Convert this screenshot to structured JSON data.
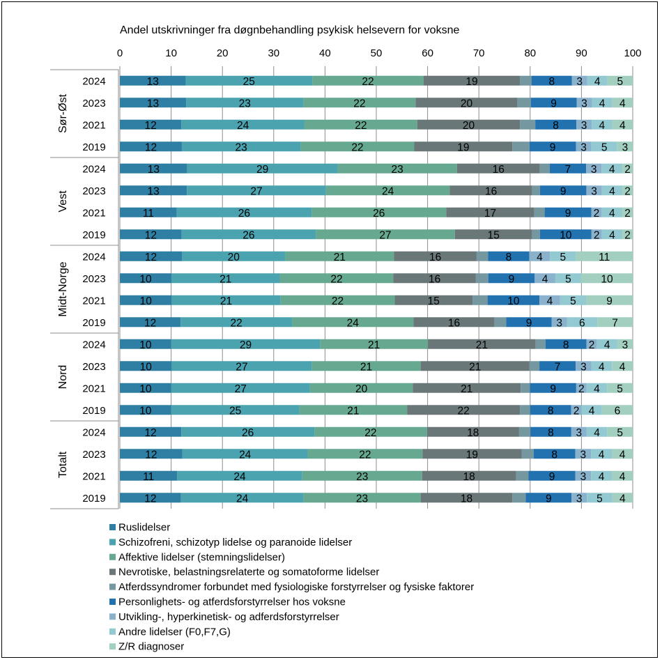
{
  "chart_data": {
    "type": "bar",
    "orientation": "horizontal",
    "stacked": true,
    "title": "Andel utskrivninger fra døgnbehandling psykisk helsevern for voksne",
    "xlim": [
      0,
      100
    ],
    "xticks": [
      0,
      10,
      20,
      30,
      40,
      50,
      60,
      70,
      80,
      90,
      100
    ],
    "grid": true,
    "legend_position": "bottom",
    "groups": [
      {
        "name": "Sør-Øst",
        "years": [
          "2024",
          "2023",
          "2021",
          "2019"
        ]
      },
      {
        "name": "Vest",
        "years": [
          "2024",
          "2023",
          "2021",
          "2019"
        ]
      },
      {
        "name": "Midt-Norge",
        "years": [
          "2024",
          "2023",
          "2021",
          "2019"
        ]
      },
      {
        "name": "Nord",
        "years": [
          "2024",
          "2023",
          "2021",
          "2019"
        ]
      },
      {
        "name": "Totalt",
        "years": [
          "2024",
          "2023",
          "2021",
          "2019"
        ]
      }
    ],
    "series": [
      {
        "name": "Ruslidelser",
        "color": "#2e7fa3",
        "labeled": true,
        "values": [
          13,
          13,
          12,
          12,
          13,
          13,
          11,
          12,
          12,
          10,
          10,
          12,
          10,
          10,
          10,
          10,
          12,
          12,
          11,
          12
        ]
      },
      {
        "name": "Schizofreni, schizotyp lidelse og paranoide lidelser",
        "color": "#4ba3b0",
        "labeled": true,
        "values": [
          25,
          23,
          24,
          23,
          29,
          27,
          26,
          26,
          20,
          21,
          21,
          22,
          29,
          27,
          27,
          25,
          26,
          24,
          24,
          24
        ]
      },
      {
        "name": "Affektive lidelser (stemningslidelser)",
        "color": "#66a890",
        "labeled": true,
        "values": [
          22,
          22,
          22,
          22,
          23,
          24,
          26,
          27,
          21,
          22,
          22,
          24,
          21,
          21,
          20,
          21,
          22,
          22,
          23,
          23
        ]
      },
      {
        "name": "Nevrotiske, belastningsrelaterte og somatoforme lidelser",
        "color": "#6a7778",
        "labeled": true,
        "values": [
          19,
          20,
          20,
          19,
          16,
          16,
          17,
          15,
          16,
          16,
          15,
          16,
          21,
          21,
          21,
          22,
          18,
          19,
          18,
          18
        ]
      },
      {
        "name": "Atferdssyndromer forbundet med fysiologiske forstyrrelser og fysiske faktorer",
        "color": "#7598a0",
        "labeled": false,
        "values": [
          2.3,
          2.6,
          3,
          3.3,
          1.9,
          1.5,
          2,
          1.5,
          2.2,
          2.4,
          2.9,
          2.3,
          1.9,
          1.9,
          1.8,
          2,
          2.2,
          2.3,
          2.4,
          2.6
        ]
      },
      {
        "name": "Personlighets- og atferdsforstyrrelser hos voksne",
        "color": "#2272b0",
        "labeled": true,
        "values": [
          8,
          9,
          8,
          9,
          7,
          9,
          9,
          10,
          8,
          9,
          10,
          9,
          8,
          7,
          9,
          8,
          8,
          8,
          9,
          9
        ]
      },
      {
        "name": "Utvikling-, hyperkinetisk- og adferdsforstyrrelser",
        "color": "#8ab2cc",
        "labeled": true,
        "values": [
          3,
          3,
          3,
          3,
          3,
          3,
          2,
          2,
          4,
          4,
          4,
          3,
          2,
          3,
          2,
          2,
          3,
          3,
          3,
          3
        ]
      },
      {
        "name": "Andre lidelser (F0,F7,G)",
        "color": "#93c9d0",
        "labeled": true,
        "values": [
          4,
          4,
          4,
          5,
          4,
          4,
          4,
          4,
          5,
          5,
          5,
          6,
          4,
          4,
          4,
          4,
          4,
          4,
          4,
          5
        ]
      },
      {
        "name": "Z/R diagnoser",
        "color": "#a2cfc0",
        "labeled": true,
        "values": [
          5,
          4,
          4,
          3,
          2,
          2,
          2,
          2,
          11,
          10,
          9,
          7,
          3,
          4,
          5,
          6,
          5,
          4,
          4,
          4
        ]
      }
    ]
  }
}
